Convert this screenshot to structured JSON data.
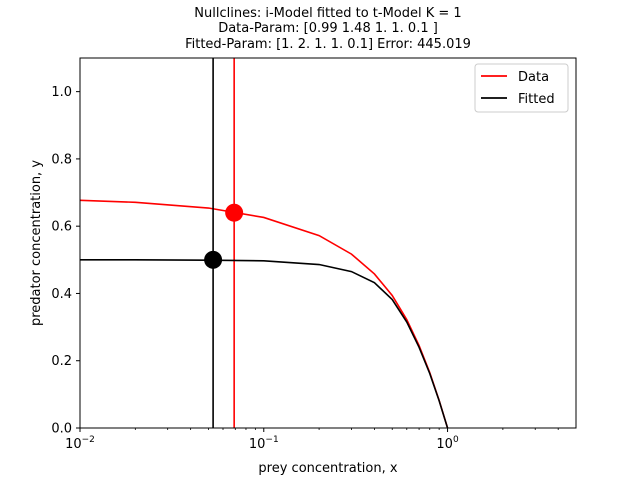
{
  "chart_data": {
    "type": "line",
    "title_lines": [
      "Nullclines: i-Model fitted to t-Model K = 1",
      "Data-Param: [0.99 1.48 1.   1.   0.1 ]",
      "Fitted-Param: [1.  2.  1.  1.  0.1] Error: 445.019"
    ],
    "xlabel": "prey concentration, x",
    "ylabel": "predator concentration, y",
    "xscale": "log",
    "xlim": [
      0.01,
      5
    ],
    "ylim": [
      0.0,
      1.1
    ],
    "grid": false,
    "legend_position": "upper-right",
    "x_ticks": [
      {
        "value": 0.01,
        "base": "10",
        "exp": "−2"
      },
      {
        "value": 0.1,
        "base": "10",
        "exp": "−1"
      },
      {
        "value": 1,
        "base": "10",
        "exp": "0"
      }
    ],
    "y_ticks": [
      "0.0",
      "0.2",
      "0.4",
      "0.6",
      "0.8",
      "1.0"
    ],
    "series": [
      {
        "name": "Data",
        "color": "#ff0000",
        "prey_nullcline": {
          "x": [
            0.01,
            0.02,
            0.05,
            0.1,
            0.2,
            0.3,
            0.4,
            0.5,
            0.6,
            0.7,
            0.8,
            0.9,
            1.0
          ],
          "y": [
            0.677,
            0.671,
            0.654,
            0.626,
            0.572,
            0.517,
            0.458,
            0.394,
            0.322,
            0.245,
            0.165,
            0.082,
            0.0
          ]
        },
        "predator_nullcline_x": 0.069,
        "equilibrium": {
          "x": 0.069,
          "y": 0.64
        }
      },
      {
        "name": "Fitted",
        "color": "#000000",
        "prey_nullcline": {
          "x": [
            0.01,
            0.02,
            0.05,
            0.1,
            0.2,
            0.3,
            0.4,
            0.5,
            0.6,
            0.7,
            0.8,
            0.9,
            1.0
          ],
          "y": [
            0.5,
            0.5,
            0.499,
            0.497,
            0.486,
            0.465,
            0.432,
            0.382,
            0.315,
            0.24,
            0.162,
            0.081,
            0.0
          ]
        },
        "predator_nullcline_x": 0.053,
        "equilibrium": {
          "x": 0.053,
          "y": 0.5
        }
      }
    ]
  }
}
